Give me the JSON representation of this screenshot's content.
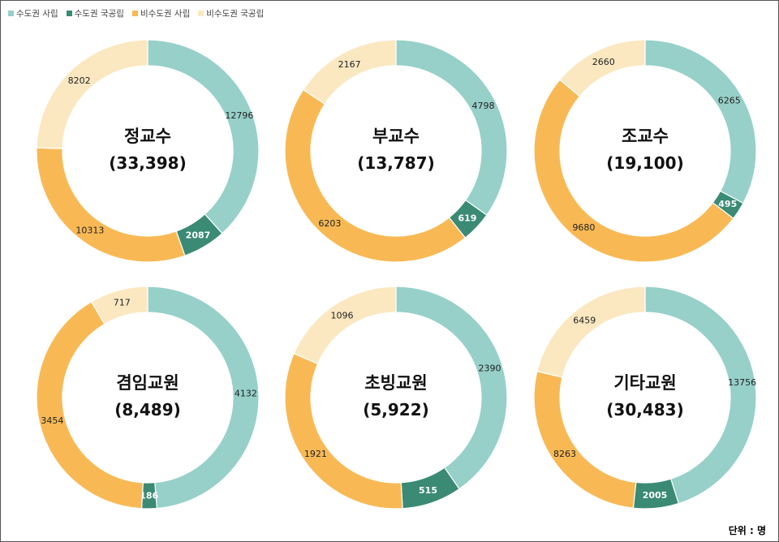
{
  "legend": [
    {
      "label": "수도권 사립",
      "color": "#96d0c9"
    },
    {
      "label": "수도권 국공립",
      "color": "#3a8a74"
    },
    {
      "label": "비수도권 사립",
      "color": "#f8b955"
    },
    {
      "label": "비수도권 국공립",
      "color": "#fbe8c1"
    }
  ],
  "unit_label": "단위 : 명",
  "chart_data": [
    {
      "type": "pie",
      "title": "정교수",
      "total": "(33,398)",
      "categories": [
        "수도권 사립",
        "수도권 국공립",
        "비수도권 사립",
        "비수도권 국공립"
      ],
      "values": [
        12796,
        2087,
        10313,
        8202
      ]
    },
    {
      "type": "pie",
      "title": "부교수",
      "total": "(13,787)",
      "categories": [
        "수도권 사립",
        "수도권 국공립",
        "비수도권 사립",
        "비수도권 국공립"
      ],
      "values": [
        4798,
        619,
        6203,
        2167
      ]
    },
    {
      "type": "pie",
      "title": "조교수",
      "total": "(19,100)",
      "categories": [
        "수도권 사립",
        "수도권 국공립",
        "비수도권 사립",
        "비수도권 국공립"
      ],
      "values": [
        6265,
        495,
        9680,
        2660
      ]
    },
    {
      "type": "pie",
      "title": "겸임교원",
      "total": "(8,489)",
      "categories": [
        "수도권 사립",
        "수도권 국공립",
        "비수도권 사립",
        "비수도권 국공립"
      ],
      "values": [
        4132,
        186,
        3454,
        717
      ]
    },
    {
      "type": "pie",
      "title": "초빙교원",
      "total": "(5,922)",
      "categories": [
        "수도권 사립",
        "수도권 국공립",
        "비수도권 사립",
        "비수도권 국공립"
      ],
      "values": [
        2390,
        515,
        1921,
        1096
      ]
    },
    {
      "type": "pie",
      "title": "기타교원",
      "total": "(30,483)",
      "categories": [
        "수도권 사립",
        "수도권 국공립",
        "비수도권 사립",
        "비수도권 국공립"
      ],
      "values": [
        13756,
        2005,
        8263,
        6459
      ]
    }
  ]
}
